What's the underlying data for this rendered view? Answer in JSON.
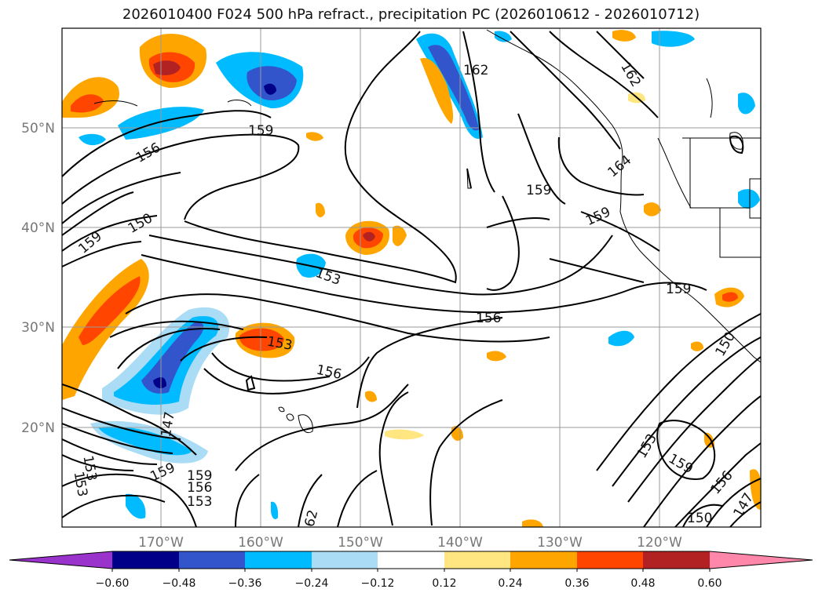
{
  "title": "2026010400 F024 500 hPa refract., precipitation PC (2026010612 - 2026010712)",
  "map": {
    "lat_labels": [
      "50°N",
      "40°N",
      "30°N",
      "20°N"
    ],
    "lon_labels": [
      "170°W",
      "160°W",
      "150°W",
      "140°W",
      "130°W",
      "120°W"
    ],
    "contour_labels": [
      "162",
      "162",
      "159",
      "156",
      "164",
      "159",
      "159",
      "150",
      "159",
      "153",
      "156",
      "153",
      "156",
      "147",
      "159",
      "159",
      "156",
      "153",
      "153",
      "159",
      "153",
      "159",
      "156",
      "150",
      "147",
      "150",
      "62",
      "153"
    ]
  },
  "colorbar": {
    "ticks": [
      "−0.60",
      "−0.48",
      "−0.36",
      "−0.24",
      "−0.12",
      "0.12",
      "0.24",
      "0.36",
      "0.48",
      "0.60"
    ],
    "colors": [
      "#9933cc",
      "#000088",
      "#3355cc",
      "#00bbff",
      "#aaddf5",
      "#ffffff",
      "#ffe680",
      "#ffa500",
      "#ff4500",
      "#b22222",
      "#ff88aa"
    ]
  }
}
